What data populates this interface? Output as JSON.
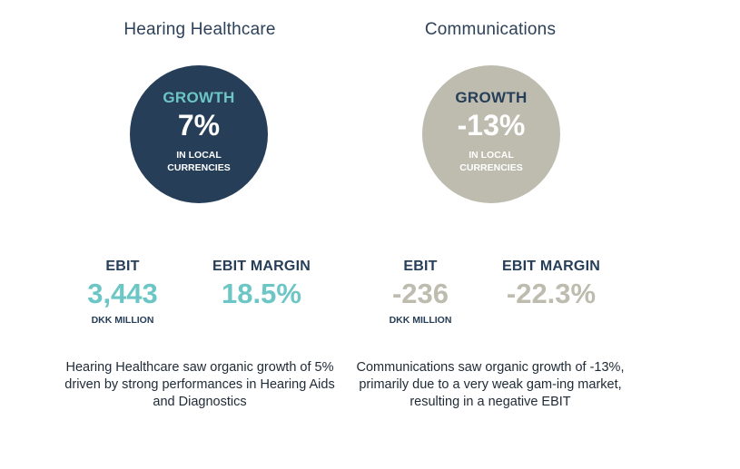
{
  "segments": {
    "hearing": {
      "title": "Hearing Healthcare",
      "growth_label": "GROWTH",
      "growth_value": "7%",
      "growth_sub_line1": "IN LOCAL",
      "growth_sub_line2": "CURRENCIES",
      "ebit_label": "EBIT",
      "ebit_value": "3,443",
      "ebit_unit": "DKK MILLION",
      "margin_label": "EBIT MARGIN",
      "margin_value": "18.5%",
      "description": "Hearing Healthcare saw organic growth of 5% driven by strong performances in Hearing Aids and Diagnostics"
    },
    "communications": {
      "title": "Communications",
      "growth_label": "GROWTH",
      "growth_value": "-13%",
      "growth_sub_line1": "IN LOCAL",
      "growth_sub_line2": "CURRENCIES",
      "ebit_label": "EBIT",
      "ebit_value": "-236",
      "ebit_unit": "DKK MILLION",
      "margin_label": "EBIT MARGIN",
      "margin_value": "-22.3%",
      "description": "Communications saw organic growth of -13%, primarily due to a very weak gam-ing market, resulting in a negative EBIT"
    }
  },
  "colors": {
    "navy": "#263e58",
    "teal": "#6cc6c5",
    "grey": "#bdbcaf"
  }
}
